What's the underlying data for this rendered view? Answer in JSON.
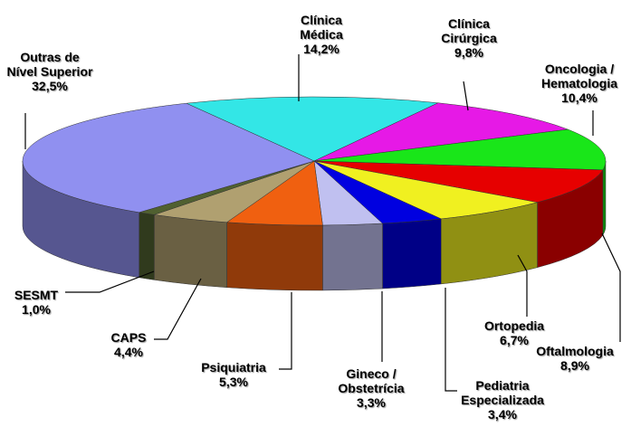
{
  "chart_data": {
    "type": "pie",
    "categories": [
      "Clínica Médica",
      "Clínica Cirúrgica",
      "Oncologia / Hematologia",
      "Oftalmologia",
      "Ortopedia",
      "Pediatria Especializada",
      "Gineco / Obstetrícia",
      "Psiquiatria",
      "CAPS",
      "SESMT",
      "Outras de Nível Superior"
    ],
    "values": [
      14.2,
      9.8,
      10.4,
      8.9,
      6.7,
      3.4,
      3.3,
      5.3,
      4.4,
      1.0,
      32.5
    ],
    "value_labels": [
      "14,2%",
      "9,8%",
      "10,4%",
      "8,9%",
      "6,7%",
      "3,4%",
      "3,3%",
      "5,3%",
      "4,4%",
      "1,0%",
      "32,5%"
    ],
    "colors": [
      "#33e6e6",
      "#e619e6",
      "#19e619",
      "#e60000",
      "#f0f020",
      "#0000e0",
      "#c0c0f0",
      "#f06010",
      "#b0a070",
      "#506030",
      "#9090f0"
    ]
  }
}
